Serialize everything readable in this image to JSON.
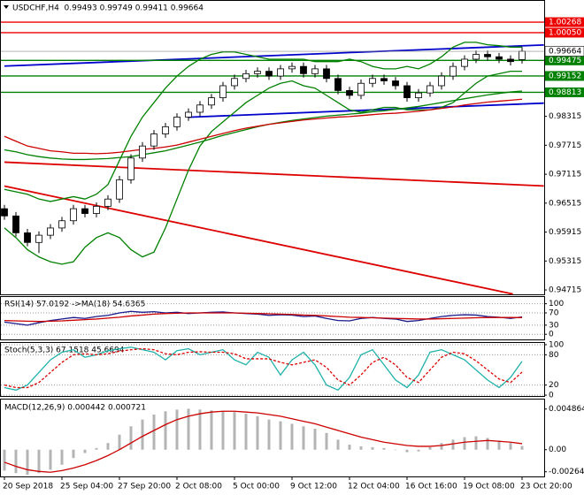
{
  "chart_data": [
    {
      "type": "candlestick",
      "title": "USDCHF,H4  0.99493 0.99749 0.99411 0.99664",
      "categories": [
        "20 Sep 2018",
        null,
        null,
        null,
        null,
        "25 Sep 04:00",
        null,
        null,
        null,
        null,
        "27 Sep 20:00",
        null,
        null,
        null,
        null,
        "2 Oct 08:00",
        null,
        null,
        null,
        null,
        "5 Oct 00:00",
        null,
        null,
        null,
        null,
        "9 Oct 12:00",
        null,
        null,
        null,
        null,
        "12 Oct 04:00",
        null,
        null,
        null,
        null,
        "16 Oct 16:00",
        null,
        null,
        null,
        null,
        "19 Oct 08:00",
        null,
        null,
        null,
        null,
        "23 Oct 20:00"
      ],
      "open": [
        0.964,
        0.9625,
        0.959,
        0.957,
        0.9585,
        0.96,
        0.9615,
        0.964,
        0.963,
        0.9645,
        0.966,
        0.97,
        0.9745,
        0.977,
        0.9795,
        0.981,
        0.983,
        0.984,
        0.9855,
        0.987,
        0.9895,
        0.991,
        0.992,
        0.9925,
        0.9915,
        0.993,
        0.9935,
        0.992,
        0.993,
        0.991,
        0.9885,
        0.9875,
        0.99,
        0.991,
        0.9905,
        0.9895,
        0.987,
        0.988,
        0.9895,
        0.9915,
        0.9935,
        0.995,
        0.996,
        0.9955,
        0.995,
        0.99493
      ],
      "high": [
        0.9648,
        0.9633,
        0.9598,
        0.9593,
        0.9608,
        0.9623,
        0.9648,
        0.9648,
        0.9653,
        0.9668,
        0.9708,
        0.9753,
        0.9778,
        0.9803,
        0.9818,
        0.9838,
        0.9848,
        0.9863,
        0.9878,
        0.9903,
        0.9918,
        0.9928,
        0.9933,
        0.9933,
        0.9938,
        0.9943,
        0.9943,
        0.9938,
        0.9938,
        0.9918,
        0.9893,
        0.9908,
        0.9918,
        0.9918,
        0.9913,
        0.9903,
        0.9888,
        0.9903,
        0.9923,
        0.9943,
        0.9958,
        0.9968,
        0.9968,
        0.9963,
        0.9958,
        0.99749
      ],
      "low": [
        0.9617,
        0.9582,
        0.9562,
        0.9548,
        0.9577,
        0.9592,
        0.9607,
        0.9622,
        0.9622,
        0.9637,
        0.9652,
        0.9692,
        0.9737,
        0.9762,
        0.9787,
        0.9802,
        0.9822,
        0.9832,
        0.9847,
        0.9862,
        0.9887,
        0.9902,
        0.9912,
        0.9907,
        0.9907,
        0.9922,
        0.9912,
        0.9912,
        0.9902,
        0.9877,
        0.9867,
        0.9867,
        0.9892,
        0.9897,
        0.9887,
        0.9862,
        0.9862,
        0.9872,
        0.9887,
        0.9907,
        0.9927,
        0.9942,
        0.9947,
        0.9942,
        0.9937,
        0.99411
      ],
      "close": [
        0.9625,
        0.959,
        0.957,
        0.9585,
        0.96,
        0.9615,
        0.964,
        0.963,
        0.9645,
        0.966,
        0.97,
        0.9745,
        0.977,
        0.9795,
        0.981,
        0.983,
        0.984,
        0.9855,
        0.987,
        0.9895,
        0.991,
        0.992,
        0.9925,
        0.9915,
        0.993,
        0.9935,
        0.992,
        0.993,
        0.991,
        0.9885,
        0.9875,
        0.99,
        0.991,
        0.9905,
        0.9895,
        0.987,
        0.988,
        0.9895,
        0.9915,
        0.9935,
        0.995,
        0.996,
        0.9955,
        0.995,
        0.9945,
        0.99664
      ],
      "series": [
        {
          "color": "#008000",
          "values": [
            0.968,
            0.9675,
            0.967,
            0.966,
            0.9655,
            0.966,
            0.9665,
            0.966,
            0.967,
            0.969,
            0.974,
            0.979,
            0.983,
            0.986,
            0.989,
            0.9915,
            0.9935,
            0.995,
            0.996,
            0.9965,
            0.9965,
            0.996,
            0.9955,
            0.995,
            0.995,
            0.995,
            0.995,
            0.9945,
            0.9945,
            0.9945,
            0.995,
            0.9945,
            0.9935,
            0.993,
            0.993,
            0.9935,
            0.993,
            0.994,
            0.9955,
            0.9975,
            0.9985,
            0.9985,
            0.998,
            0.9978,
            0.9975,
            0.9975
          ]
        },
        {
          "color": "#008000",
          "values": [
            0.96,
            0.958,
            0.9555,
            0.954,
            0.953,
            0.9525,
            0.953,
            0.956,
            0.958,
            0.959,
            0.958,
            0.9555,
            0.954,
            0.955,
            0.96,
            0.966,
            0.972,
            0.977,
            0.98,
            0.982,
            0.984,
            0.986,
            0.9875,
            0.989,
            0.99,
            0.9905,
            0.9895,
            0.989,
            0.9875,
            0.986,
            0.9845,
            0.984,
            0.9845,
            0.985,
            0.985,
            0.9845,
            0.9845,
            0.9845,
            0.985,
            0.986,
            0.988,
            0.99,
            0.9915,
            0.992,
            0.9925,
            0.9925
          ]
        },
        {
          "color": "#008000",
          "values": [
            0.9762,
            0.9758,
            0.9752,
            0.9748,
            0.9745,
            0.9743,
            0.9742,
            0.9742,
            0.9743,
            0.9744,
            0.9746,
            0.9748,
            0.9752,
            0.9756,
            0.976,
            0.9766,
            0.9772,
            0.9778,
            0.9785,
            0.9792,
            0.9798,
            0.9804,
            0.981,
            0.9815,
            0.9819,
            0.9823,
            0.9826,
            0.9829,
            0.9832,
            0.9834,
            0.9836,
            0.9838,
            0.9841,
            0.9843,
            0.9846,
            0.9849,
            0.9852,
            0.9856,
            0.986,
            0.9864,
            0.9868,
            0.9872,
            0.9876,
            0.9879,
            0.9882,
            0.9884
          ]
        },
        {
          "color": "#cc0000",
          "values": [
            0.979,
            0.978,
            0.977,
            0.9765,
            0.976,
            0.9758,
            0.9755,
            0.9755,
            0.9754,
            0.9755,
            0.9757,
            0.976,
            0.9763,
            0.9765,
            0.9768,
            0.9772,
            0.9778,
            0.9784,
            0.979,
            0.9796,
            0.9802,
            0.9807,
            0.9811,
            0.9815,
            0.9818,
            0.9821,
            0.9824,
            0.9826,
            0.9828,
            0.983,
            0.9831,
            0.9833,
            0.9835,
            0.9837,
            0.9838,
            0.984,
            0.9842,
            0.9845,
            0.9848,
            0.9851,
            0.9855,
            0.9858,
            0.9861,
            0.9863,
            0.9865,
            0.9867
          ]
        }
      ],
      "trendlines": [
        {
          "color": "#0000cc",
          "x": [
            0,
            46.9
          ],
          "values": [
            0.99357,
            0.99795
          ]
        },
        {
          "color": "#0000cc",
          "x": [
            16,
            46.9
          ],
          "values": [
            0.98297,
            0.98589
          ]
        },
        {
          "color": "#dd0000",
          "x": [
            0,
            44.2
          ],
          "values": [
            0.9687,
            0.9463
          ]
        },
        {
          "color": "#dd0000",
          "x": [
            0,
            46.9
          ],
          "values": [
            0.97365,
            0.96871
          ]
        }
      ],
      "levels": [
        {
          "value": 1.00268,
          "color": "#ee0000"
        },
        {
          "value": 1.0005,
          "label": "1.00050",
          "color": "#ee0000"
        },
        {
          "value": 0.99475,
          "color": "#008000"
        },
        {
          "value": 0.99152,
          "color": "#008000"
        },
        {
          "value": 0.98813,
          "color": "#008000"
        }
      ],
      "ylim": [
        0.94624,
        1.00709
      ],
      "yticks": [
        0.94715,
        0.95315,
        0.95915,
        0.96515,
        0.97115,
        0.97715,
        0.98315
      ],
      "grid": false
    },
    {
      "type": "line",
      "title": "RSI(14) 57.0192 ->MA(18) 54.6365",
      "series": [
        {
          "color": "#1a1a8c",
          "values": [
            40,
            35,
            30,
            38,
            45,
            50,
            55,
            52,
            58,
            62,
            70,
            75,
            72,
            74,
            70,
            72,
            68,
            70,
            72,
            73,
            70,
            68,
            66,
            62,
            64,
            63,
            58,
            60,
            52,
            45,
            44,
            52,
            55,
            52,
            50,
            42,
            45,
            52,
            58,
            62,
            64,
            63,
            58,
            56,
            52,
            57.0192
          ]
        },
        {
          "color": "#cc0000",
          "values": [
            45,
            44,
            43,
            42,
            43,
            44,
            46,
            48,
            50,
            53,
            56,
            60,
            63,
            66,
            68,
            69,
            70,
            70,
            70,
            70,
            70,
            69,
            68,
            67,
            66,
            65,
            63,
            62,
            60,
            58,
            56,
            55,
            54,
            53,
            52,
            51,
            50,
            50,
            51,
            52,
            53,
            54,
            55,
            55,
            55,
            54.6365
          ]
        }
      ],
      "ylim": [
        -16.7,
        122
      ],
      "yticks": [
        0,
        30,
        70,
        100
      ],
      "grid": true
    },
    {
      "type": "line",
      "title": "Stoch(5,3,3) 67.1518 45.6694",
      "series": [
        {
          "color": "#20b2aa",
          "values": [
            15,
            10,
            20,
            45,
            70,
            85,
            90,
            75,
            80,
            88,
            92,
            95,
            90,
            85,
            70,
            88,
            92,
            80,
            85,
            90,
            70,
            60,
            85,
            75,
            40,
            70,
            85,
            60,
            20,
            10,
            35,
            80,
            90,
            60,
            30,
            15,
            40,
            85,
            90,
            80,
            70,
            50,
            30,
            15,
            35,
            67.1518
          ]
        },
        {
          "color": "#dd0000",
          "dash": true,
          "values": [
            20,
            15,
            15,
            25,
            45,
            65,
            80,
            82,
            80,
            82,
            87,
            90,
            92,
            90,
            82,
            80,
            85,
            86,
            85,
            85,
            82,
            72,
            72,
            72,
            65,
            60,
            65,
            70,
            55,
            30,
            20,
            40,
            65,
            75,
            60,
            35,
            25,
            50,
            75,
            85,
            82,
            68,
            50,
            32,
            25,
            45.6694
          ]
        }
      ],
      "ylim": [
        -1.7,
        103.4
      ],
      "yticks": [
        0,
        20,
        80,
        100
      ],
      "grid": true
    },
    {
      "type": "macd",
      "title": "MACD(12,26,9) 0.000442 0.000721",
      "series": [
        {
          "color": "#b4b4b4",
          "style": "bar",
          "values": [
            -0.0025,
            -0.0028,
            -0.003,
            -0.0028,
            -0.0024,
            -0.0018,
            -0.001,
            -0.0004,
            0.0002,
            0.0008,
            0.0018,
            0.0028,
            0.0036,
            0.0042,
            0.0046,
            0.0048,
            0.0049,
            0.0048,
            0.0047,
            0.0046,
            0.0045,
            0.0043,
            0.004,
            0.0036,
            0.0034,
            0.0031,
            0.0028,
            0.0025,
            0.002,
            0.0012,
            0.0006,
            0.0004,
            0.0003,
            0.0002,
            0.0,
            -0.0003,
            -0.0002,
            0.0003,
            0.0008,
            0.0012,
            0.0015,
            0.0016,
            0.0014,
            0.0011,
            0.0008,
            0.000442
          ]
        },
        {
          "color": "#cc0000",
          "style": "line",
          "values": [
            -0.0015,
            -0.002,
            -0.0024,
            -0.0026,
            -0.0027,
            -0.0025,
            -0.0022,
            -0.0018,
            -0.0013,
            -0.0007,
            0.0,
            0.0008,
            0.0016,
            0.0023,
            0.003,
            0.0036,
            0.004,
            0.0043,
            0.0045,
            0.0046,
            0.0046,
            0.0045,
            0.0044,
            0.0042,
            0.004,
            0.0037,
            0.0034,
            0.0031,
            0.0027,
            0.0023,
            0.0019,
            0.0015,
            0.0012,
            0.0009,
            0.0007,
            0.0005,
            0.0004,
            0.0004,
            0.0005,
            0.0007,
            0.0009,
            0.001,
            0.0011,
            0.001,
            0.0009,
            0.000721
          ]
        }
      ],
      "ylim": [
        -0.0032,
        0.006
      ],
      "yticks": [
        {
          "value": -0.00264,
          "label": "-0.00264"
        },
        {
          "value": 0,
          "label": "0.00"
        },
        0.004864
      ],
      "grid": false
    }
  ]
}
